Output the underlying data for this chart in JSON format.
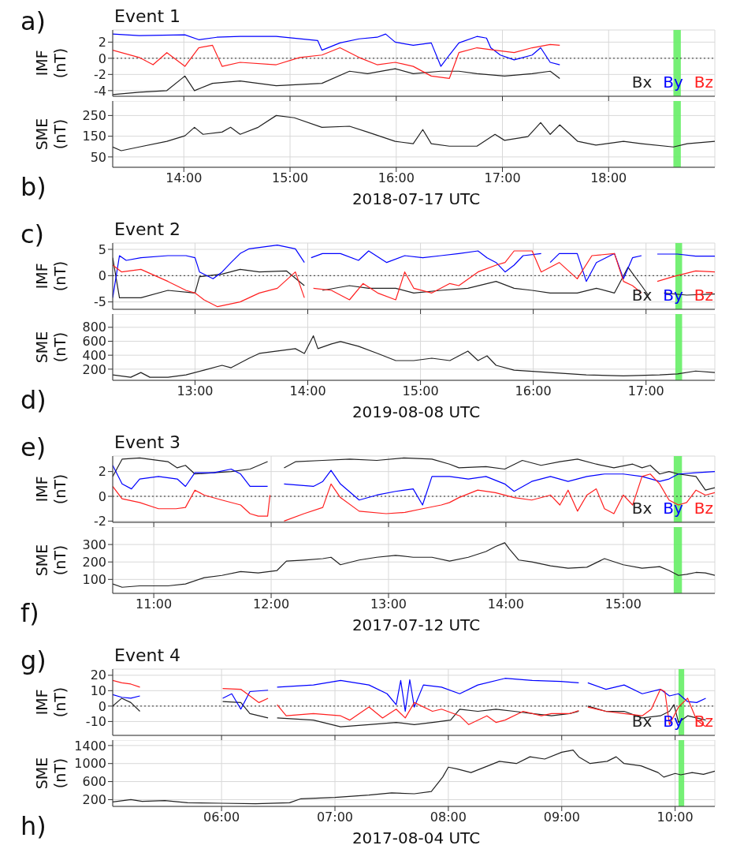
{
  "chart_data": [
    {
      "type": "line",
      "title": "Event 1",
      "ylabel": "IMF (nT)",
      "annotations": [
        "a)"
      ],
      "xlim": [
        13.33,
        19.0
      ],
      "xticks": [
        {
          "value": 14,
          "label": null
        },
        {
          "value": 15,
          "label": null
        },
        {
          "value": 16,
          "label": null
        },
        {
          "value": 17,
          "label": null
        },
        {
          "value": 18,
          "label": null
        }
      ],
      "ylim": [
        -4.7,
        3.5
      ],
      "yticks": [
        -4,
        -2,
        0,
        2
      ],
      "tick_labels": "y",
      "grid": true,
      "legend": "bottom right",
      "ref_lines": [
        {
          "axis": "y",
          "value": 0,
          "line_style": "dotted",
          "color": "#333333"
        }
      ],
      "bands": [
        {
          "axis": "x",
          "from": 18.61,
          "to": 18.68,
          "color": "#66ee66"
        }
      ],
      "series": [
        {
          "name": "Bx",
          "color": "#222222",
          "x": [
            13.33,
            13.58,
            13.84,
            14.01,
            14.1,
            14.27,
            14.53,
            14.87,
            15.3,
            15.56,
            15.73,
            15.99,
            16.16,
            16.42,
            16.59,
            16.76,
            17.02,
            17.28,
            17.45,
            17.54
          ],
          "values": [
            -4.5,
            -4.2,
            -4.0,
            -2.2,
            -4.0,
            -3.1,
            -2.8,
            -3.4,
            -3.1,
            -1.6,
            -1.9,
            -1.3,
            -1.9,
            -1.6,
            -1.6,
            -1.9,
            -2.2,
            -1.9,
            -1.6,
            -2.5
          ]
        },
        {
          "name": "By",
          "color": "#0000ff",
          "x": [
            13.33,
            13.58,
            14.01,
            14.14,
            14.31,
            14.53,
            14.87,
            15.26,
            15.3,
            15.47,
            15.65,
            15.82,
            15.9,
            15.99,
            16.16,
            16.33,
            16.42,
            16.5,
            16.59,
            16.76,
            16.85,
            16.89,
            16.98,
            17.11,
            17.28,
            17.36,
            17.45,
            17.54
          ],
          "values": [
            3.0,
            2.8,
            2.9,
            2.3,
            2.6,
            2.7,
            2.7,
            2.2,
            1.0,
            1.9,
            2.4,
            2.6,
            3.0,
            2.0,
            1.6,
            1.9,
            -1.0,
            0.4,
            1.9,
            2.7,
            2.5,
            1.3,
            0.4,
            -0.2,
            0.4,
            1.3,
            -0.5,
            -0.8
          ]
        },
        {
          "name": "Bz",
          "color": "#ff2020",
          "x": [
            13.33,
            13.58,
            13.71,
            13.84,
            14.01,
            14.14,
            14.27,
            14.36,
            14.53,
            14.87,
            15.09,
            15.3,
            15.47,
            15.65,
            15.82,
            15.99,
            16.16,
            16.33,
            16.5,
            16.59,
            16.76,
            16.93,
            17.11,
            17.28,
            17.45,
            17.54
          ],
          "values": [
            1.0,
            0.1,
            -0.8,
            0.7,
            -1.0,
            1.3,
            1.6,
            -1.0,
            -0.5,
            -0.8,
            0.1,
            0.4,
            1.3,
            0.1,
            -0.8,
            -0.5,
            -1.0,
            -2.2,
            -2.5,
            0.7,
            1.3,
            1.0,
            0.7,
            1.3,
            1.7,
            1.6
          ]
        }
      ]
    },
    {
      "type": "line",
      "ylabel": "SME (nT)",
      "xlabel": "2018-07-17 UTC",
      "annotations": [
        "b)"
      ],
      "xlim": [
        13.33,
        19.0
      ],
      "xticks": [
        {
          "value": 14,
          "label": "14:00"
        },
        {
          "value": 15,
          "label": "15:00"
        },
        {
          "value": 16,
          "label": "16:00"
        },
        {
          "value": 17,
          "label": "17:00"
        },
        {
          "value": 18,
          "label": "18:00"
        }
      ],
      "ylim": [
        0,
        320
      ],
      "yticks": [
        50,
        150,
        250
      ],
      "grid": true,
      "bands": [
        {
          "axis": "x",
          "from": 18.61,
          "to": 18.68,
          "color": "#66ee66"
        }
      ],
      "series": [
        {
          "color": "#222222",
          "x": [
            13.33,
            13.41,
            13.58,
            13.84,
            14.01,
            14.1,
            14.18,
            14.36,
            14.44,
            14.53,
            14.7,
            14.87,
            15.04,
            15.3,
            15.56,
            15.73,
            15.99,
            16.16,
            16.25,
            16.33,
            16.5,
            16.76,
            16.93,
            17.02,
            17.24,
            17.36,
            17.45,
            17.54,
            17.71,
            17.88,
            18.14,
            18.31,
            18.61,
            18.74,
            19.0
          ],
          "values": [
            98,
            80,
            98,
            125,
            152,
            193,
            159,
            170,
            193,
            159,
            193,
            250,
            239,
            193,
            198,
            170,
            125,
            114,
            182,
            114,
            102,
            102,
            159,
            130,
            148,
            216,
            159,
            205,
            125,
            107,
            125,
            114,
            98,
            114,
            125
          ]
        }
      ]
    },
    {
      "type": "line",
      "title": "Event 2",
      "ylabel": "IMF (nT)",
      "annotations": [
        "c)"
      ],
      "xlim": [
        12.27,
        17.61
      ],
      "xticks": [
        {
          "value": 13,
          "label": null
        },
        {
          "value": 14,
          "label": null
        },
        {
          "value": 15,
          "label": null
        },
        {
          "value": 16,
          "label": null
        },
        {
          "value": 17,
          "label": null
        }
      ],
      "ylim": [
        -6.4,
        6.2
      ],
      "yticks": [
        -5,
        0,
        5
      ],
      "tick_labels": "y",
      "grid": true,
      "legend": "bottom right",
      "ref_lines": [
        {
          "axis": "y",
          "value": 0,
          "line_style": "dotted",
          "color": "#333333"
        }
      ],
      "bands": [
        {
          "axis": "x",
          "from": 17.26,
          "to": 17.32,
          "color": "#66ee66"
        }
      ],
      "series": [
        {
          "name": "Bx",
          "color": "#222222",
          "x": [
            12.27,
            12.33,
            12.52,
            12.76,
            13.0,
            13.04,
            13.24,
            13.4,
            13.57,
            13.81,
            13.97,
            14.0,
            14.13,
            14.37,
            14.54,
            14.78,
            14.94,
            15.18,
            15.42,
            15.67,
            15.83,
            15.99,
            16.15,
            16.39,
            16.56,
            16.72,
            16.84,
            16.96,
            17.02,
            17.08,
            17.16,
            17.36,
            17.61
          ],
          "values": [
            3.4,
            -4.2,
            -4.2,
            -2.8,
            -3.3,
            -0.2,
            0.3,
            1.2,
            0.7,
            0.9,
            -1.9,
            null,
            -2.8,
            -1.9,
            -2.4,
            -2.4,
            -3.3,
            -2.8,
            -2.4,
            -1.1,
            -2.4,
            -2.8,
            -3.3,
            -3.3,
            -2.4,
            -3.3,
            1.6,
            -1.9,
            -3.7,
            null,
            -3.3,
            -3.7,
            -3.5
          ]
        },
        {
          "name": "By",
          "color": "#0000ff",
          "x": [
            12.27,
            12.33,
            12.39,
            12.52,
            12.76,
            12.92,
            13.0,
            13.04,
            13.16,
            13.24,
            13.32,
            13.4,
            13.48,
            13.73,
            13.89,
            13.97,
            14.0,
            14.03,
            14.13,
            14.29,
            14.45,
            14.54,
            14.7,
            14.86,
            15.02,
            15.18,
            15.34,
            15.51,
            15.59,
            15.67,
            15.75,
            15.83,
            15.91,
            16.07,
            16.11,
            16.15,
            16.23,
            16.39,
            16.47,
            16.56,
            16.72,
            16.8,
            16.88,
            16.96,
            17.03,
            17.1,
            17.28,
            17.44,
            17.61
          ],
          "values": [
            -4.2,
            3.8,
            2.9,
            3.4,
            3.8,
            3.8,
            3.4,
            0.7,
            -0.6,
            0.7,
            2.5,
            4.2,
            5.1,
            5.8,
            5.1,
            2.5,
            null,
            3.4,
            4.2,
            4.2,
            2.9,
            4.7,
            2.5,
            3.8,
            3.4,
            3.8,
            4.2,
            4.7,
            3.4,
            2.5,
            0.7,
            2.0,
            3.8,
            4.2,
            null,
            2.5,
            4.2,
            4.2,
            -1.1,
            2.5,
            4.2,
            -0.6,
            3.4,
            3.8,
            null,
            4.1,
            4.1,
            3.7,
            3.7
          ]
        },
        {
          "name": "Bz",
          "color": "#ff2020",
          "x": [
            12.27,
            12.35,
            12.52,
            12.76,
            12.92,
            13.0,
            13.08,
            13.2,
            13.4,
            13.57,
            13.73,
            13.89,
            13.97,
            14.0,
            14.05,
            14.21,
            14.37,
            14.49,
            14.62,
            14.78,
            14.86,
            14.94,
            15.1,
            15.26,
            15.34,
            15.51,
            15.67,
            15.75,
            15.83,
            15.99,
            16.07,
            16.23,
            16.39,
            16.52,
            16.72,
            16.8,
            16.88,
            16.96,
            17.03,
            17.1,
            17.24,
            17.44,
            17.61
          ],
          "values": [
            2.0,
            0.7,
            1.2,
            -1.1,
            -2.8,
            -3.3,
            -4.6,
            -5.9,
            -5.0,
            -3.3,
            -2.4,
            0.7,
            -4.2,
            null,
            -2.4,
            -2.8,
            -4.6,
            -1.5,
            -3.3,
            -4.6,
            0.7,
            -2.4,
            -3.3,
            -1.5,
            -1.9,
            0.7,
            2.0,
            2.5,
            4.7,
            4.7,
            0.7,
            2.5,
            -0.6,
            3.8,
            4.2,
            -1.1,
            -1.9,
            -3.3,
            null,
            -1.1,
            -0.2,
            0.9,
            0.7
          ]
        }
      ]
    },
    {
      "type": "line",
      "ylabel": "SME (nT)",
      "xlabel": "2019-08-08 UTC",
      "annotations": [
        "d)"
      ],
      "xlim": [
        12.27,
        17.61
      ],
      "xticks": [
        {
          "value": 13,
          "label": "13:00"
        },
        {
          "value": 14,
          "label": "14:00"
        },
        {
          "value": 15,
          "label": "15:00"
        },
        {
          "value": 16,
          "label": "16:00"
        },
        {
          "value": 17,
          "label": "17:00"
        }
      ],
      "ylim": [
        40,
        990
      ],
      "yticks": [
        200,
        400,
        600,
        800
      ],
      "grid": true,
      "bands": [
        {
          "axis": "x",
          "from": 17.26,
          "to": 17.32,
          "color": "#66ee66"
        }
      ],
      "series": [
        {
          "color": "#222222",
          "x": [
            12.27,
            12.43,
            12.52,
            12.6,
            12.76,
            12.92,
            13.08,
            13.24,
            13.32,
            13.48,
            13.57,
            13.73,
            13.89,
            13.97,
            14.05,
            14.09,
            14.21,
            14.29,
            14.45,
            14.62,
            14.78,
            14.94,
            15.1,
            15.26,
            15.42,
            15.51,
            15.59,
            15.67,
            15.83,
            16.15,
            16.47,
            16.8,
            17.12,
            17.28,
            17.44,
            17.61
          ],
          "values": [
            118,
            84,
            152,
            84,
            84,
            118,
            186,
            255,
            220,
            357,
            425,
            459,
            494,
            425,
            678,
            494,
            562,
            596,
            528,
            425,
            323,
            323,
            357,
            323,
            459,
            323,
            391,
            255,
            186,
            152,
            118,
            104,
            118,
            132,
            173,
            152
          ]
        }
      ]
    },
    {
      "type": "line",
      "title": "Event 3",
      "ylabel": "IMF (nT)",
      "annotations": [
        "e)"
      ],
      "xlim": [
        10.65,
        15.78
      ],
      "xticks": [
        {
          "value": 11,
          "label": null
        },
        {
          "value": 12,
          "label": null
        },
        {
          "value": 13,
          "label": null
        },
        {
          "value": 14,
          "label": null
        },
        {
          "value": 15,
          "label": null
        }
      ],
      "ylim": [
        -2.1,
        3.25
      ],
      "yticks": [
        -2,
        0,
        2
      ],
      "tick_labels": "y",
      "grid": true,
      "legend": "bottom right",
      "ref_lines": [
        {
          "axis": "y",
          "value": 0,
          "line_style": "dotted",
          "color": "#333333"
        }
      ],
      "bands": [
        {
          "axis": "x",
          "from": 15.43,
          "to": 15.5,
          "color": "#66ee66"
        }
      ],
      "series": [
        {
          "name": "Bx",
          "color": "#222222",
          "x": [
            10.65,
            10.73,
            10.88,
            11.12,
            11.2,
            11.27,
            11.35,
            11.51,
            11.66,
            11.82,
            11.97,
            12.05,
            12.11,
            12.21,
            12.44,
            12.67,
            12.9,
            13.13,
            13.37,
            13.52,
            13.6,
            13.83,
            13.99,
            14.14,
            14.3,
            14.46,
            14.61,
            14.77,
            14.92,
            15.08,
            15.16,
            15.23,
            15.31,
            15.39,
            15.47,
            15.62,
            15.7,
            15.78
          ],
          "values": [
            1.6,
            3.0,
            3.1,
            2.8,
            2.3,
            2.5,
            1.8,
            1.9,
            2.0,
            2.2,
            2.8,
            null,
            2.3,
            2.8,
            2.9,
            3.0,
            2.9,
            3.1,
            3.0,
            2.6,
            2.3,
            2.4,
            2.2,
            2.9,
            2.5,
            2.8,
            3.0,
            2.6,
            2.3,
            2.6,
            2.3,
            2.5,
            1.8,
            2.0,
            1.8,
            1.6,
            0.5,
            0.7
          ]
        },
        {
          "name": "By",
          "color": "#0000ff",
          "x": [
            10.65,
            10.73,
            10.81,
            10.88,
            11.04,
            11.2,
            11.27,
            11.35,
            11.51,
            11.66,
            11.74,
            11.82,
            11.97,
            12.05,
            12.11,
            12.36,
            12.44,
            12.51,
            12.59,
            12.75,
            12.9,
            13.06,
            13.21,
            13.29,
            13.37,
            13.52,
            13.68,
            13.83,
            13.99,
            14.07,
            14.22,
            14.38,
            14.53,
            14.69,
            14.84,
            15.0,
            15.16,
            15.31,
            15.39,
            15.47,
            15.62,
            15.78
          ],
          "values": [
            2.5,
            1.0,
            0.6,
            1.4,
            1.6,
            1.4,
            0.8,
            1.9,
            1.9,
            2.2,
            1.8,
            0.8,
            0.8,
            null,
            1.0,
            0.8,
            1.2,
            2.1,
            1.0,
            -0.3,
            0.1,
            0.4,
            0.6,
            -0.7,
            1.6,
            1.6,
            1.4,
            1.6,
            1.0,
            0.4,
            1.2,
            1.6,
            1.2,
            1.6,
            1.8,
            1.8,
            1.6,
            1.2,
            1.4,
            1.8,
            1.9,
            2.0
          ]
        },
        {
          "name": "Bz",
          "color": "#ff2020",
          "x": [
            10.65,
            10.73,
            10.88,
            11.04,
            11.19,
            11.27,
            11.35,
            11.43,
            11.58,
            11.74,
            11.82,
            11.89,
            11.97,
            11.99,
            12.05,
            12.11,
            12.28,
            12.44,
            12.51,
            12.59,
            12.75,
            12.98,
            13.14,
            13.29,
            13.45,
            13.52,
            13.6,
            13.76,
            13.91,
            14.07,
            14.22,
            14.38,
            14.46,
            14.53,
            14.61,
            14.69,
            14.77,
            14.84,
            14.92,
            15.0,
            15.08,
            15.16,
            15.23,
            15.31,
            15.39,
            15.47,
            15.54,
            15.62,
            15.7,
            15.78
          ],
          "values": [
            0.8,
            -0.2,
            -0.5,
            -1.0,
            -1.0,
            -0.9,
            0.5,
            0.1,
            -0.3,
            -0.7,
            -1.4,
            -1.6,
            -1.6,
            0.1,
            null,
            -2.0,
            -1.4,
            -0.9,
            1.0,
            -0.1,
            -1.2,
            -1.4,
            -1.3,
            -1.0,
            -0.7,
            -0.5,
            -0.1,
            0.5,
            0.3,
            -0.1,
            -0.3,
            0.1,
            -0.7,
            0.5,
            -1.2,
            0.1,
            0.6,
            -1.0,
            -1.4,
            0.1,
            -0.7,
            1.6,
            1.8,
            1.0,
            -0.3,
            -0.7,
            -0.5,
            0.5,
            0.1,
            0.3
          ]
        }
      ]
    },
    {
      "type": "line",
      "ylabel": "SME (nT)",
      "xlabel": "2017-07-12 UTC",
      "annotations": [
        "f)"
      ],
      "xlim": [
        10.65,
        15.78
      ],
      "xticks": [
        {
          "value": 11,
          "label": "11:00"
        },
        {
          "value": 12,
          "label": "12:00"
        },
        {
          "value": 13,
          "label": "13:00"
        },
        {
          "value": 14,
          "label": "14:00"
        },
        {
          "value": 15,
          "label": "15:00"
        }
      ],
      "ylim": [
        20,
        400
      ],
      "yticks": [
        100,
        200,
        300
      ],
      "grid": true,
      "bands": [
        {
          "axis": "x",
          "from": 15.43,
          "to": 15.5,
          "color": "#66ee66"
        }
      ],
      "series": [
        {
          "color": "#222222",
          "x": [
            10.65,
            10.73,
            10.88,
            11.12,
            11.27,
            11.43,
            11.58,
            11.74,
            11.89,
            12.05,
            12.13,
            12.28,
            12.44,
            12.51,
            12.59,
            12.75,
            12.9,
            13.06,
            13.21,
            13.37,
            13.52,
            13.68,
            13.83,
            13.91,
            13.99,
            14.03,
            14.11,
            14.22,
            14.38,
            14.53,
            14.69,
            14.84,
            15.0,
            15.16,
            15.31,
            15.39,
            15.47,
            15.54,
            15.62,
            15.7,
            15.78
          ],
          "values": [
            74,
            55,
            63,
            63,
            74,
            110,
            123,
            145,
            137,
            151,
            205,
            211,
            219,
            227,
            184,
            211,
            227,
            238,
            227,
            227,
            205,
            227,
            260,
            288,
            310,
            274,
            211,
            200,
            178,
            164,
            170,
            219,
            184,
            164,
            173,
            151,
            123,
            129,
            140,
            137,
            123
          ]
        }
      ]
    },
    {
      "type": "line",
      "title": "Event 4",
      "ylabel": "IMF (nT)",
      "annotations": [
        "g)"
      ],
      "xlim": [
        5.04,
        10.35
      ],
      "xticks": [
        {
          "value": 6,
          "label": null
        },
        {
          "value": 7,
          "label": null
        },
        {
          "value": 8,
          "label": null
        },
        {
          "value": 9,
          "label": null
        },
        {
          "value": 10,
          "label": null
        }
      ],
      "ylim": [
        -19,
        24
      ],
      "yticks": [
        -10,
        0,
        10,
        20
      ],
      "tick_labels": "y",
      "grid": true,
      "legend": "bottom right",
      "ref_lines": [
        {
          "axis": "y",
          "value": 0,
          "line_style": "dotted",
          "color": "#333333"
        }
      ],
      "bands": [
        {
          "axis": "x",
          "from": 10.03,
          "to": 10.08,
          "color": "#66ee66"
        }
      ],
      "series": [
        {
          "name": "Bx",
          "color": "#222222",
          "x": [
            5.04,
            5.12,
            5.2,
            5.28,
            5.6,
            6.01,
            6.17,
            6.25,
            6.33,
            6.41,
            6.45,
            6.49,
            6.81,
            7.05,
            7.3,
            7.54,
            7.7,
            7.86,
            8.02,
            8.1,
            8.26,
            8.42,
            8.58,
            8.74,
            8.91,
            9.07,
            9.15,
            9.19,
            9.23,
            9.39,
            9.55,
            9.71,
            9.87,
            9.95,
            9.99,
            10.03,
            10.11,
            10.27
          ],
          "values": [
            0.0,
            5.1,
            2.3,
            -3.4,
            null,
            2.9,
            2.3,
            -4.9,
            -6.3,
            -7.7,
            null,
            -7.7,
            -9.1,
            -13.4,
            -12.0,
            -10.6,
            -12.0,
            -10.6,
            -9.1,
            -2.0,
            -3.4,
            -2.0,
            -3.4,
            -4.9,
            -6.3,
            -4.9,
            -3.4,
            null,
            0.0,
            -3.4,
            -3.4,
            -7.7,
            -6.3,
            -3.4,
            0.9,
            -10.6,
            -6.3,
            -9.1
          ]
        },
        {
          "name": "By",
          "color": "#0000ff",
          "x": [
            5.04,
            5.12,
            5.2,
            5.28,
            5.6,
            6.01,
            6.09,
            6.17,
            6.25,
            6.41,
            6.45,
            6.49,
            6.81,
            7.05,
            7.3,
            7.46,
            7.54,
            7.58,
            7.62,
            7.66,
            7.7,
            7.78,
            7.94,
            8.1,
            8.26,
            8.5,
            8.74,
            8.99,
            9.15,
            9.19,
            9.23,
            9.39,
            9.55,
            9.71,
            9.87,
            9.95,
            10.03,
            10.11,
            10.19,
            10.27
          ],
          "values": [
            7.4,
            5.7,
            5.1,
            6.6,
            null,
            5.1,
            8.0,
            -2.0,
            9.4,
            10.3,
            null,
            12.3,
            13.7,
            16.6,
            13.7,
            8.0,
            0.9,
            16.6,
            -3.4,
            17.1,
            -0.6,
            13.7,
            12.3,
            8.0,
            13.7,
            18.0,
            16.6,
            16.0,
            15.1,
            null,
            15.1,
            10.9,
            13.7,
            8.0,
            10.9,
            6.6,
            8.0,
            2.9,
            2.3,
            5.1
          ]
        },
        {
          "name": "Bz",
          "color": "#ff2020",
          "x": [
            5.04,
            5.12,
            5.2,
            5.28,
            5.6,
            6.01,
            6.17,
            6.25,
            6.33,
            6.41,
            6.45,
            6.49,
            6.57,
            6.81,
            7.05,
            7.13,
            7.3,
            7.42,
            7.54,
            7.62,
            7.7,
            7.86,
            7.94,
            8.1,
            8.18,
            8.34,
            8.42,
            8.5,
            8.66,
            8.82,
            8.91,
            9.07,
            9.15,
            9.19,
            9.23,
            9.39,
            9.55,
            9.71,
            9.79,
            9.87,
            9.91,
            9.95,
            10.03,
            10.11,
            10.19,
            10.27
          ],
          "values": [
            16.6,
            15.1,
            14.3,
            12.3,
            null,
            11.4,
            10.9,
            6.6,
            2.3,
            5.1,
            null,
            0.9,
            -6.3,
            -4.9,
            -6.3,
            -9.1,
            -0.6,
            -7.7,
            -2.0,
            -7.7,
            2.3,
            -3.4,
            -2.0,
            -6.3,
            -12.0,
            -6.3,
            -10.6,
            -9.1,
            -3.4,
            -6.3,
            -4.9,
            -4.9,
            -2.9,
            null,
            -0.6,
            -3.4,
            -4.9,
            -6.3,
            -2.0,
            10.9,
            9.4,
            -12.0,
            -0.6,
            5.1,
            -9.1,
            -13.4
          ]
        }
      ]
    },
    {
      "type": "line",
      "ylabel": "SME (nT)",
      "xlabel": "2017-08-04 UTC",
      "annotations": [
        "h)"
      ],
      "xlim": [
        5.04,
        10.35
      ],
      "xticks": [
        {
          "value": 6,
          "label": "06:00"
        },
        {
          "value": 7,
          "label": "07:00"
        },
        {
          "value": 8,
          "label": "08:00"
        },
        {
          "value": 9,
          "label": "09:00"
        },
        {
          "value": 10,
          "label": "10:00"
        }
      ],
      "ylim": [
        50,
        1520
      ],
      "yticks": [
        200,
        600,
        1000,
        1400
      ],
      "grid": true,
      "bands": [
        {
          "axis": "x",
          "from": 10.03,
          "to": 10.08,
          "color": "#66ee66"
        }
      ],
      "series": [
        {
          "color": "#222222",
          "x": [
            5.04,
            5.2,
            5.3,
            5.5,
            5.7,
            6.0,
            6.3,
            6.6,
            6.7,
            7.0,
            7.3,
            7.5,
            7.7,
            7.85,
            7.95,
            8.0,
            8.08,
            8.2,
            8.35,
            8.45,
            8.6,
            8.72,
            8.85,
            9.0,
            9.1,
            9.15,
            9.25,
            9.4,
            9.48,
            9.55,
            9.7,
            9.85,
            9.9,
            10.0,
            10.05,
            10.15,
            10.25,
            10.35
          ],
          "values": [
            150,
            200,
            160,
            180,
            130,
            120,
            110,
            130,
            220,
            250,
            300,
            350,
            330,
            380,
            700,
            920,
            880,
            800,
            950,
            1050,
            1000,
            1150,
            1100,
            1250,
            1300,
            1150,
            1000,
            1050,
            1150,
            1000,
            950,
            800,
            700,
            780,
            750,
            800,
            760,
            830
          ]
        }
      ]
    }
  ]
}
